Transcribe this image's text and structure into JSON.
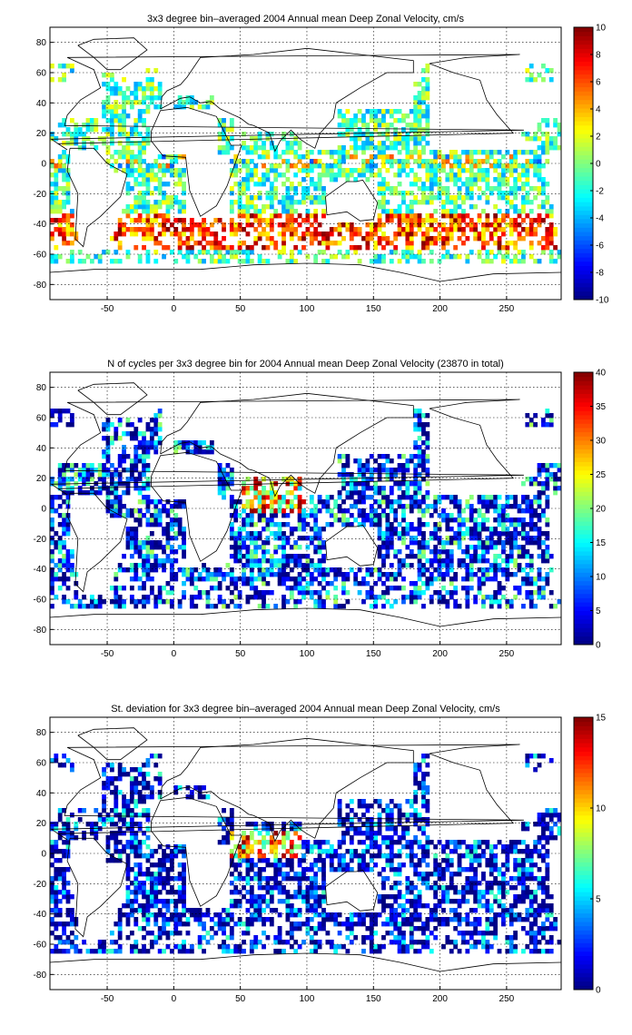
{
  "chart_data": [
    {
      "type": "heatmap",
      "title": "3x3 degree bin–averaged 2004 Annual mean Deep Zonal Velocity, cm/s",
      "xlim": [
        -93,
        291
      ],
      "ylim": [
        -90,
        90
      ],
      "x_ticks": [
        "-50",
        "0",
        "50",
        "100",
        "150",
        "200",
        "250"
      ],
      "x_tick_values": [
        -50,
        0,
        50,
        100,
        150,
        200,
        250
      ],
      "y_ticks": [
        "80",
        "60",
        "40",
        "20",
        "0",
        "-20",
        "-40",
        "-60",
        "-80"
      ],
      "y_tick_values": [
        80,
        60,
        40,
        20,
        0,
        -20,
        -40,
        -60,
        -80
      ],
      "colorbar": {
        "min": -10,
        "max": 10,
        "ticks": [
          "10",
          "8",
          "6",
          "4",
          "2",
          "0",
          "-2",
          "-4",
          "-6",
          "-8",
          "-10"
        ],
        "tick_values": [
          10,
          8,
          6,
          4,
          2,
          0,
          -2,
          -4,
          -6,
          -8,
          -10
        ]
      },
      "colormap": "jet",
      "grid": "dotted",
      "bin_size_deg": 3,
      "field": "mean",
      "seed": 11
    },
    {
      "type": "heatmap",
      "title": "N of cycles per 3x3 degree bin for 2004 Annual mean Deep Zonal Velocity (23870 in total)",
      "xlim": [
        -93,
        291
      ],
      "ylim": [
        -90,
        90
      ],
      "x_ticks": [
        "-50",
        "0",
        "50",
        "100",
        "150",
        "200",
        "250"
      ],
      "x_tick_values": [
        -50,
        0,
        50,
        100,
        150,
        200,
        250
      ],
      "y_ticks": [
        "80",
        "60",
        "40",
        "20",
        "0",
        "-20",
        "-40",
        "-60",
        "-80"
      ],
      "y_tick_values": [
        80,
        60,
        40,
        20,
        0,
        -20,
        -40,
        -60,
        -80
      ],
      "colorbar": {
        "min": 0,
        "max": 40,
        "ticks": [
          "40",
          "35",
          "30",
          "25",
          "20",
          "15",
          "10",
          "5",
          "0"
        ],
        "tick_values": [
          40,
          35,
          30,
          25,
          20,
          15,
          10,
          5,
          0
        ]
      },
      "colormap": "jet",
      "grid": "dotted",
      "bin_size_deg": 3,
      "field": "count",
      "seed": 23
    },
    {
      "type": "heatmap",
      "title": "St. deviation for 3x3 degree bin–averaged 2004 Annual mean Deep Zonal Velocity, cm/s",
      "xlim": [
        -93,
        291
      ],
      "ylim": [
        -90,
        90
      ],
      "x_ticks": [
        "-50",
        "0",
        "50",
        "100",
        "150",
        "200",
        "250"
      ],
      "x_tick_values": [
        -50,
        0,
        50,
        100,
        150,
        200,
        250
      ],
      "y_ticks": [
        "80",
        "60",
        "40",
        "20",
        "0",
        "-20",
        "-40",
        "-60",
        "-80"
      ],
      "y_tick_values": [
        80,
        60,
        40,
        20,
        0,
        -20,
        -40,
        -60,
        -80
      ],
      "colorbar": {
        "min": 0,
        "max": 15,
        "ticks": [
          "15",
          "10",
          "5",
          "0"
        ],
        "tick_values": [
          15,
          10,
          5,
          0
        ]
      },
      "colormap": "jet",
      "grid": "dotted",
      "bin_size_deg": 3,
      "field": "std",
      "seed": 37
    }
  ]
}
